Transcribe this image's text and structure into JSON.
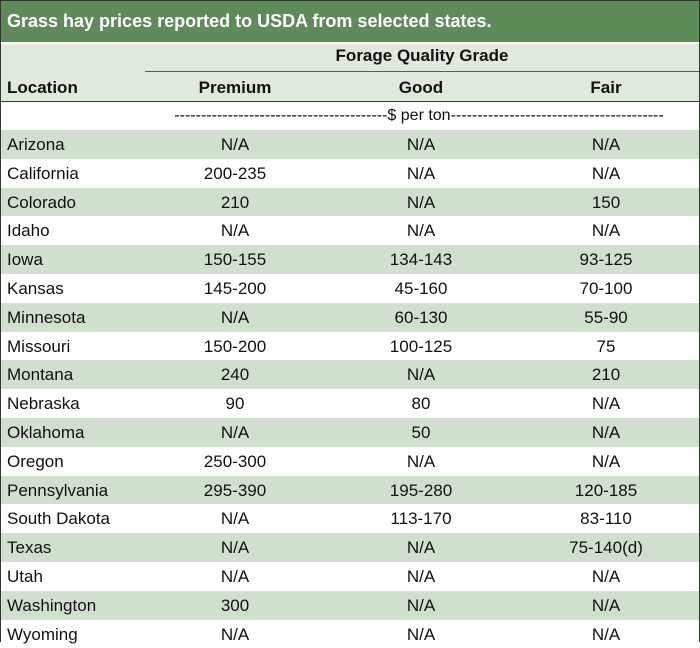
{
  "title": "Grass hay prices reported to USDA from selected states.",
  "header": {
    "group_label": "Forage Quality Grade",
    "location_label": "Location",
    "columns": [
      "Premium",
      "Good",
      "Fair"
    ]
  },
  "unit_line": "----------------------------------------$ per ton----------------------------------------",
  "rows": [
    {
      "location": "Arizona",
      "premium": "N/A",
      "good": "N/A",
      "fair": "N/A"
    },
    {
      "location": "California",
      "premium": "200-235",
      "good": "N/A",
      "fair": "N/A"
    },
    {
      "location": "Colorado",
      "premium": "210",
      "good": "N/A",
      "fair": "150"
    },
    {
      "location": "Idaho",
      "premium": "N/A",
      "good": "N/A",
      "fair": "N/A"
    },
    {
      "location": "Iowa",
      "premium": "150-155",
      "good": "134-143",
      "fair": "93-125"
    },
    {
      "location": "Kansas",
      "premium": "145-200",
      "good": "45-160",
      "fair": "70-100"
    },
    {
      "location": "Minnesota",
      "premium": "N/A",
      "good": "60-130",
      "fair": "55-90"
    },
    {
      "location": "Missouri",
      "premium": "150-200",
      "good": "100-125",
      "fair": "75"
    },
    {
      "location": "Montana",
      "premium": "240",
      "good": "N/A",
      "fair": "210"
    },
    {
      "location": "Nebraska",
      "premium": "90",
      "good": "80",
      "fair": "N/A"
    },
    {
      "location": "Oklahoma",
      "premium": "N/A",
      "good": "50",
      "fair": "N/A"
    },
    {
      "location": "Oregon",
      "premium": "250-300",
      "good": "N/A",
      "fair": "N/A"
    },
    {
      "location": "Pennsylvania",
      "premium": "295-390",
      "good": "195-280",
      "fair": "120-185"
    },
    {
      "location": "South Dakota",
      "premium": "N/A",
      "good": "113-170",
      "fair": "83-110"
    },
    {
      "location": "Texas",
      "premium": "N/A",
      "good": "N/A",
      "fair": "75-140(d)"
    },
    {
      "location": "Utah",
      "premium": "N/A",
      "good": "N/A",
      "fair": "N/A"
    },
    {
      "location": "Washington",
      "premium": "300",
      "good": "N/A",
      "fair": "N/A"
    },
    {
      "location": "Wyoming",
      "premium": "N/A",
      "good": "N/A",
      "fair": "N/A"
    }
  ]
}
